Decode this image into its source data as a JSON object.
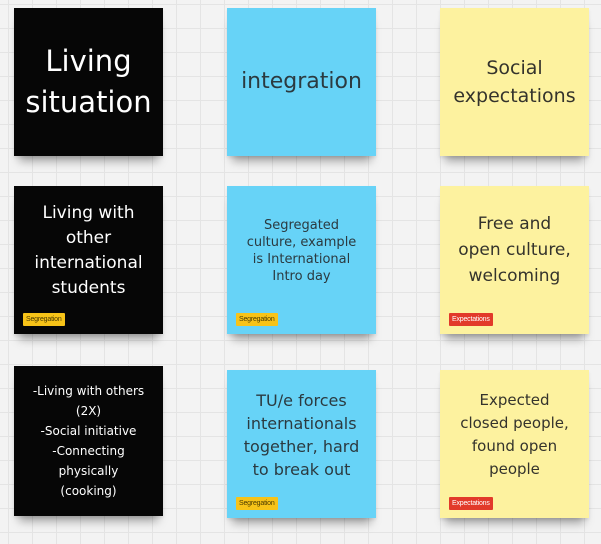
{
  "board": {
    "notes": [
      {
        "id": "living-situation",
        "text": "Living\nsituation",
        "color": "black"
      },
      {
        "id": "integration",
        "text": "integration",
        "color": "blue"
      },
      {
        "id": "social-expectations",
        "text": "Social\nexpectations",
        "color": "yellow"
      },
      {
        "id": "living-with-international",
        "text": "Living with\nother\ninternational\nstudents",
        "color": "black",
        "tag": "Segregation"
      },
      {
        "id": "segregated-culture",
        "text": "Segregated\nculture, example\nis International\nIntro day",
        "color": "blue",
        "tag": "Segregation"
      },
      {
        "id": "free-open-culture",
        "text": "Free and\nopen culture,\nwelcoming",
        "color": "yellow",
        "tag": "Expectations"
      },
      {
        "id": "living-with-others",
        "text": "-Living with others\n(2X)\n-Social initiative\n-Connecting\nphysically\n(cooking)",
        "color": "black"
      },
      {
        "id": "tue-forces",
        "text": "TU/e forces\ninternationals\ntogether, hard\nto break out",
        "color": "blue",
        "tag": "Segregation"
      },
      {
        "id": "expected-closed",
        "text": "Expected\nclosed people,\nfound open\npeople",
        "color": "yellow",
        "tag": "Expectations"
      }
    ]
  },
  "colors": {
    "black_note": "#060606",
    "blue_note": "#67d3f7",
    "yellow_note": "#fdf29f",
    "segregation_tag": "#f7c318",
    "expectations_tag": "#e23a2a"
  }
}
